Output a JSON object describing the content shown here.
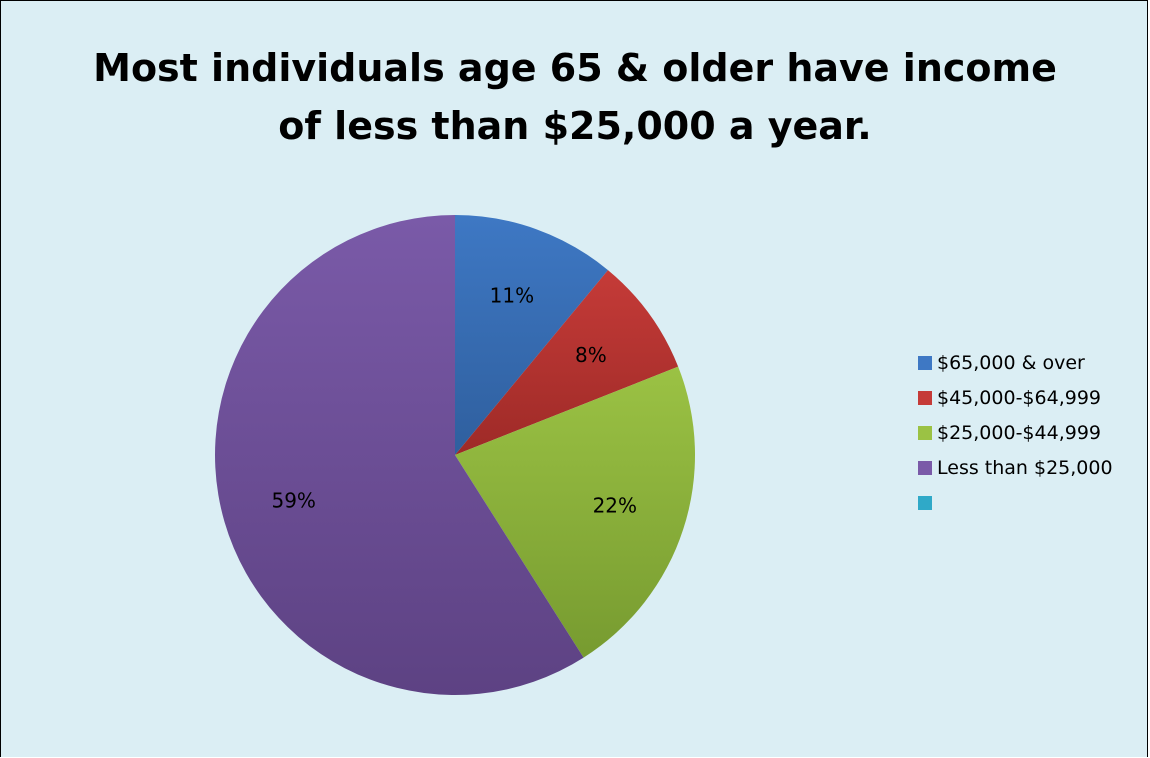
{
  "chart_data": {
    "type": "pie",
    "title_lines": [
      "Most individuals age 65 & older have income",
      "of less than $25,000 a year."
    ],
    "slices": [
      {
        "label": "$65,000 & over",
        "value": 11,
        "value_label": "11%",
        "color": "#3e78c4",
        "color_dark": "#2f5f9e"
      },
      {
        "label": "$45,000-$64,999",
        "value": 8,
        "value_label": "8%",
        "color": "#c53b38",
        "color_dark": "#9e2a27"
      },
      {
        "label": "$25,000-$44,999",
        "value": 22,
        "value_label": "22%",
        "color": "#9bc244",
        "color_dark": "#779b30"
      },
      {
        "label": "Less than $25,000",
        "value": 59,
        "value_label": "59%",
        "color": "#7a5aa8",
        "color_dark": "#5d4283"
      }
    ],
    "legend": [
      {
        "label": "$65,000 & over",
        "color": "#3e78c4"
      },
      {
        "label": "$45,000-$64,999",
        "color": "#c53b38"
      },
      {
        "label": "$25,000-$44,999",
        "color": "#9bc244"
      },
      {
        "label": "Less than $25,000",
        "color": "#7a5aa8"
      },
      {
        "label": "",
        "color": "#2fa9c8"
      }
    ],
    "legend_position": "right",
    "start_angle": "12 o'clock",
    "direction": "clockwise"
  }
}
